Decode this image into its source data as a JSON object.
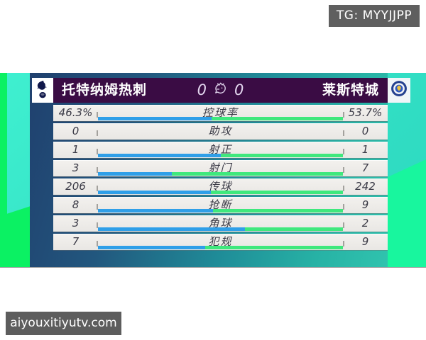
{
  "overlays": {
    "tg_badge": "TG: MYYJJPP",
    "watermark": "aiyouxitiyutv.com"
  },
  "scoreboard": {
    "home_team": "托特纳姆热刺",
    "away_team": "莱斯特城",
    "home_score": "0",
    "away_score": "0",
    "home_badge_icon": "tottenham-hotspur-crest",
    "away_badge_icon": "leicester-city-crest",
    "center_icon": "premier-league-lion"
  },
  "stats": {
    "rows": [
      {
        "label": "控球率",
        "home": "46.3%",
        "away": "53.7%",
        "home_pct": 46.3
      },
      {
        "label": "助攻",
        "home": "0",
        "away": "0",
        "home_pct": null
      },
      {
        "label": "射正",
        "home": "1",
        "away": "1",
        "home_pct": 50
      },
      {
        "label": "射门",
        "home": "3",
        "away": "7",
        "home_pct": 30
      },
      {
        "label": "传球",
        "home": "206",
        "away": "242",
        "home_pct": 46
      },
      {
        "label": "抢断",
        "home": "8",
        "away": "9",
        "home_pct": 47.1
      },
      {
        "label": "角球",
        "home": "3",
        "away": "2",
        "home_pct": 60
      },
      {
        "label": "犯规",
        "home": "7",
        "away": "9",
        "home_pct": 43.8
      }
    ]
  },
  "colors": {
    "bar_home_blue": "#2f9fe8",
    "bar_away_green": "#3fe87d",
    "header_purple": "#3a0c44",
    "bright_green": "#0bf163",
    "turquoise": "#35e2c6",
    "spring_green": "#18f69e",
    "navy": "#20406e",
    "overlay_gray": "#5f5f5f"
  }
}
